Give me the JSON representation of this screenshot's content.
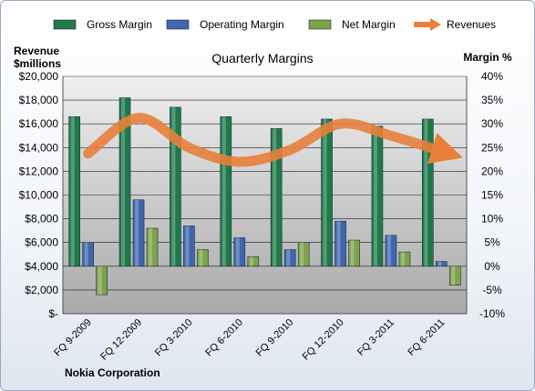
{
  "chart_data": {
    "type": "bar",
    "title": "Quarterly Margins",
    "company": "Nokia Corporation",
    "ylabel_left": [
      "Revenue",
      "$millions"
    ],
    "ylabel_right": "Margin %",
    "categories": [
      "FQ 9-2009",
      "FQ 12-2009",
      "FQ 3-2010",
      "FQ 6-2010",
      "FQ 9-2010",
      "FQ 12-2010",
      "FQ 3-2011",
      "FQ 6-2011"
    ],
    "y_left_ticks": [
      "$-",
      "$2,000",
      "$4,000",
      "$6,000",
      "$8,000",
      "$10,000",
      "$12,000",
      "$14,000",
      "$16,000",
      "$18,000",
      "$20,000"
    ],
    "y_right_ticks": [
      "-10%",
      "-5%",
      "0%",
      "5%",
      "10%",
      "15%",
      "20%",
      "25%",
      "30%",
      "35%",
      "40%"
    ],
    "ylim_left": [
      0,
      20000
    ],
    "ylim_right": [
      -10,
      40
    ],
    "legend_position": "top",
    "series": [
      {
        "name": "Gross Margin",
        "axis": "right",
        "kind": "bar",
        "color": "#1f7a4a",
        "values": [
          31.5,
          35.5,
          33.5,
          31.5,
          29.0,
          31.0,
          29.5,
          31.0
        ]
      },
      {
        "name": "Operating Margin",
        "axis": "right",
        "kind": "bar",
        "color": "#3f67ad",
        "values": [
          5.0,
          14.0,
          8.5,
          6.0,
          3.5,
          9.5,
          6.5,
          1.0
        ]
      },
      {
        "name": "Net Margin",
        "axis": "right",
        "kind": "bar",
        "color": "#7ea34a",
        "values": [
          -6.0,
          8.0,
          3.5,
          2.0,
          5.0,
          5.5,
          3.0,
          -4.0
        ]
      },
      {
        "name": "Revenues",
        "axis": "left",
        "kind": "line",
        "color": "#e8803a",
        "values": [
          13500,
          16500,
          14000,
          12800,
          13800,
          16000,
          15000,
          13700
        ]
      }
    ]
  }
}
